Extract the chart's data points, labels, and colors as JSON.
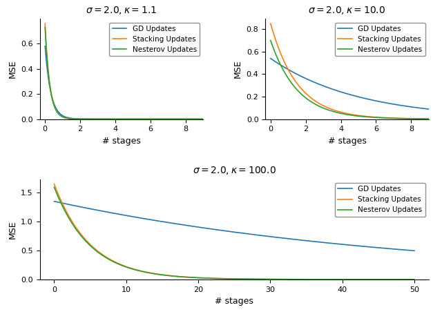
{
  "plots": [
    {
      "sigma": 2.0,
      "kappa": 1.1,
      "title": "$\\sigma = 2.0, \\kappa = 1.1$",
      "n_stages": 9,
      "gd_init": 0.58,
      "stack_init": 0.76,
      "nest_init": 0.73,
      "gd_rate": 0.045,
      "stack_rate": 0.003,
      "nest_rate": 0.003
    },
    {
      "sigma": 2.0,
      "kappa": 10.0,
      "title": "$\\sigma = 2.0, \\kappa = 10.0$",
      "n_stages": 9,
      "gd_init": 0.54,
      "stack_init": 0.85,
      "nest_init": 0.7,
      "gd_rate_exp": 0.82,
      "stack_rate_exp": 0.52,
      "nest_rate_exp": 0.52
    },
    {
      "sigma": 2.0,
      "kappa": 100.0,
      "title": "$\\sigma = 2.0, \\kappa = 100.0$",
      "n_stages": 50,
      "gd_init": 1.35,
      "stack_init": 1.65,
      "nest_init": 1.65,
      "gd_rate_exp": 0.98,
      "stack_rate_exp": 0.88,
      "nest_rate_exp": 0.88
    }
  ],
  "colors": {
    "gd": "#1f77b4",
    "stacking": "#ff7f0e",
    "nesterov": "#2ca02c"
  },
  "legend_labels": [
    "GD Updates",
    "Stacking Updates",
    "Nesterov Updates"
  ],
  "xlabel": "# stages",
  "ylabel": "MSE"
}
